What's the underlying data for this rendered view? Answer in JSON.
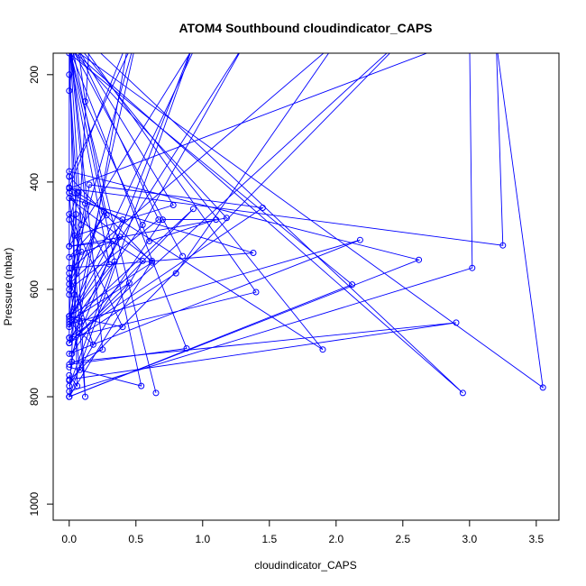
{
  "chart_data": {
    "type": "line",
    "title": "ATOM4 Southbound cloudindicator_CAPS",
    "xlabel": "cloudindicator_CAPS",
    "ylabel": "Pressure (mbar)",
    "xlim": [
      -0.12,
      3.67
    ],
    "ylim": [
      1030,
      160
    ],
    "y_reversed": true,
    "x_ticks": [
      0.0,
      0.5,
      1.0,
      1.5,
      2.0,
      2.5,
      3.0,
      3.5
    ],
    "x_tick_labels": [
      "0.0",
      "0.5",
      "1.0",
      "1.5",
      "2.0",
      "2.5",
      "3.0",
      "3.5"
    ],
    "y_ticks": [
      200,
      400,
      600,
      800,
      1000
    ],
    "y_tick_labels": [
      "200",
      "400",
      "600",
      "800",
      "1000"
    ],
    "grid": false,
    "legend": "none",
    "series_color": "#0000ff",
    "series": [
      {
        "x": [
          0.0,
          0.05,
          0.12,
          0.6,
          1.1,
          0.7,
          0.02,
          0.95,
          0.0
        ],
        "y": [
          230,
          120,
          250,
          510,
          470,
          470,
          720,
          130,
          800
        ]
      },
      {
        "x": [
          0.0,
          0.0,
          0.4,
          0.0,
          1.32,
          0.55,
          0.0,
          0.15,
          1.45,
          0.0
        ],
        "y": [
          390,
          420,
          470,
          655,
          140,
          480,
          670,
          405,
          448,
          690
        ]
      },
      {
        "x": [
          0.0,
          2.18,
          0.0,
          0.93,
          0.0,
          1.4,
          0.0,
          0.0,
          2.6,
          0.0
        ],
        "y": [
          720,
          508,
          665,
          450,
          690,
          605,
          110,
          700,
          110,
          770
        ]
      },
      {
        "x": [
          0.05,
          0.0,
          0.62,
          0.0,
          0.5,
          0.02,
          2.0,
          0.8,
          0.0,
          0.5
        ],
        "y": [
          460,
          650,
          550,
          390,
          130,
          560,
          140,
          570,
          700,
          140
        ]
      },
      {
        "x": [
          0.0,
          3.02,
          3.0,
          0.0,
          3.25,
          3.2,
          3.55,
          0.02,
          0.85
        ],
        "y": [
          790,
          560,
          130,
          412,
          518,
          140,
          783,
          150,
          538
        ]
      },
      {
        "x": [
          0.04,
          0.78,
          0.0,
          1.9,
          0.0,
          0.45,
          0.02,
          2.9,
          0.0
        ],
        "y": [
          500,
          443,
          125,
          712,
          410,
          130,
          735,
          662,
          768
        ]
      },
      {
        "x": [
          0.0,
          2.62,
          0.0,
          0.15,
          2.95,
          0.0,
          0.65,
          0.0,
          1.18,
          0.0
        ],
        "y": [
          380,
          545,
          800,
          140,
          793,
          150,
          793,
          150,
          467,
          520
        ]
      },
      {
        "x": [
          0.0,
          0.33,
          0.0,
          0.28,
          0.0,
          0.67,
          0.0,
          0.12,
          0.0,
          0.09
        ],
        "y": [
          520,
          510,
          540,
          462,
          120,
          470,
          600,
          440,
          130,
          480
        ]
      },
      {
        "x": [
          0.0,
          0.54,
          0.0,
          0.88,
          0.0,
          0.25,
          0.0,
          0.06,
          0.0
        ],
        "y": [
          745,
          780,
          150,
          710,
          740,
          712,
          120,
          780,
          760
        ]
      },
      {
        "x": [
          0.03,
          0.3,
          0.0,
          2.12,
          0.0,
          0.62,
          0.0,
          1.38,
          0.0
        ],
        "y": [
          430,
          553,
          160,
          591,
          800,
          547,
          430,
          532,
          560
        ]
      },
      {
        "x": [
          0.0,
          0.4,
          0.0,
          0.55,
          0.0,
          0.34,
          0.0,
          0.98,
          0.0,
          0.07
        ],
        "y": [
          650,
          670,
          460,
          547,
          780,
          548,
          650,
          130,
          520,
          420
        ]
      },
      {
        "x": [
          0.0,
          0.26,
          0.0,
          0.38,
          0.0,
          0.45,
          0.0,
          0.18,
          0.0,
          0.08
        ],
        "y": [
          610,
          455,
          590,
          502,
          700,
          588,
          660,
          703,
          570,
          750
        ]
      },
      {
        "x": [
          0.0,
          0.12,
          0.0,
          0.06,
          0.0,
          0.09,
          0.0,
          0.04,
          0.0,
          0.08
        ],
        "y": [
          420,
          800,
          200,
          420,
          470,
          530,
          580,
          610,
          650,
          660
        ]
      }
    ]
  }
}
